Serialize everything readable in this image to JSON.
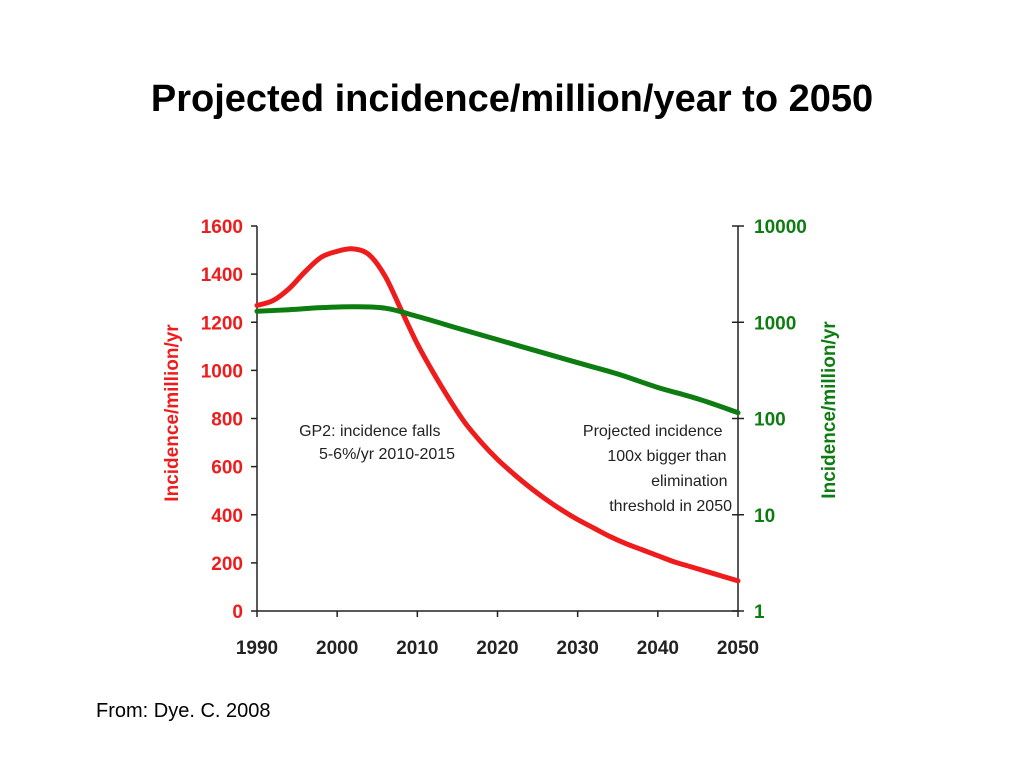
{
  "title": "Projected incidence/million/year to 2050",
  "source": "From: Dye. C. 2008",
  "colors": {
    "left_series": "#ee1c1c",
    "right_series": "#0d7d12",
    "axis": "#222222"
  },
  "chart_data": {
    "type": "line",
    "xlim": [
      1990,
      2050
    ],
    "x_ticks": [
      "1990",
      "2000",
      "2010",
      "2020",
      "2030",
      "2040",
      "2050"
    ],
    "y_left": {
      "label": "Incidence/million/yr",
      "lim": [
        0,
        1600
      ],
      "ticks": [
        "0",
        "200",
        "400",
        "600",
        "800",
        "1000",
        "1200",
        "1400",
        "1600"
      ]
    },
    "y_right": {
      "label": "Incidence/million/yr",
      "scale": "log",
      "lim": [
        1,
        10000
      ],
      "ticks": [
        "1",
        "10",
        "100",
        "1000",
        "10000"
      ]
    },
    "series": [
      {
        "axis": "left",
        "x": [
          1990,
          1992,
          1994,
          1996,
          1998,
          2000,
          2002,
          2004,
          2006,
          2008,
          2010,
          2012,
          2014,
          2016,
          2018,
          2020,
          2022,
          2024,
          2026,
          2028,
          2030,
          2032,
          2034,
          2036,
          2038,
          2040,
          2042,
          2044,
          2046,
          2048,
          2050
        ],
        "y": [
          1270,
          1290,
          1340,
          1410,
          1470,
          1495,
          1505,
          1480,
          1390,
          1250,
          1110,
          990,
          880,
          780,
          700,
          630,
          570,
          515,
          465,
          420,
          380,
          345,
          310,
          280,
          255,
          230,
          205,
          185,
          165,
          145,
          125
        ]
      },
      {
        "axis": "right",
        "x": [
          1990,
          1994,
          1998,
          2002,
          2006,
          2010,
          2015,
          2020,
          2025,
          2030,
          2035,
          2040,
          2045,
          2050
        ],
        "y": [
          1300,
          1350,
          1420,
          1450,
          1400,
          1150,
          870,
          660,
          500,
          380,
          290,
          210,
          160,
          115
        ]
      }
    ],
    "annotations": [
      {
        "lines": [
          "GP2: incidence falls",
          "5-6%/yr 2010-2015"
        ]
      },
      {
        "lines": [
          "Projected incidence",
          "100x bigger than",
          "elimination",
          "threshold in 2050"
        ]
      }
    ]
  }
}
